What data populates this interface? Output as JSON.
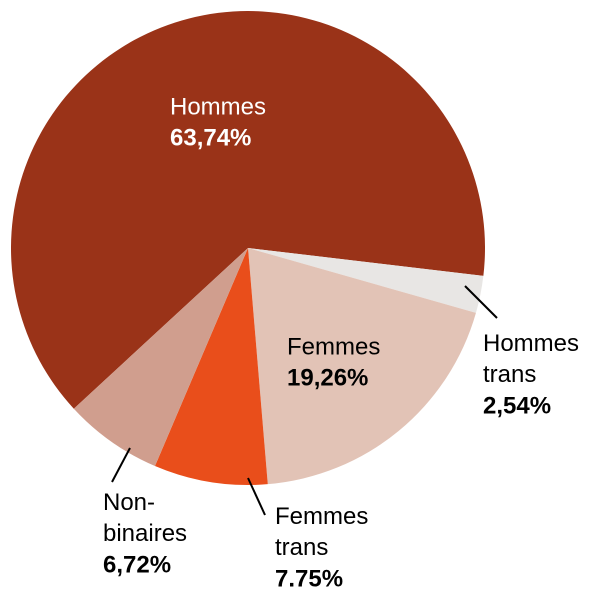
{
  "chart_data": {
    "type": "pie",
    "categories": [
      "Hommes",
      "Hommes trans",
      "Femmes",
      "Femmes trans",
      "Non-binaires"
    ],
    "values": [
      63.74,
      2.54,
      19.26,
      7.75,
      6.72
    ],
    "value_labels": [
      "63,74%",
      "2,54%",
      "19,26%",
      "7.75%",
      "6,72%"
    ],
    "colors": [
      "#9a3318",
      "#e8e6e4",
      "#e2c3b6",
      "#e94e1b",
      "#d09e8e"
    ]
  }
}
